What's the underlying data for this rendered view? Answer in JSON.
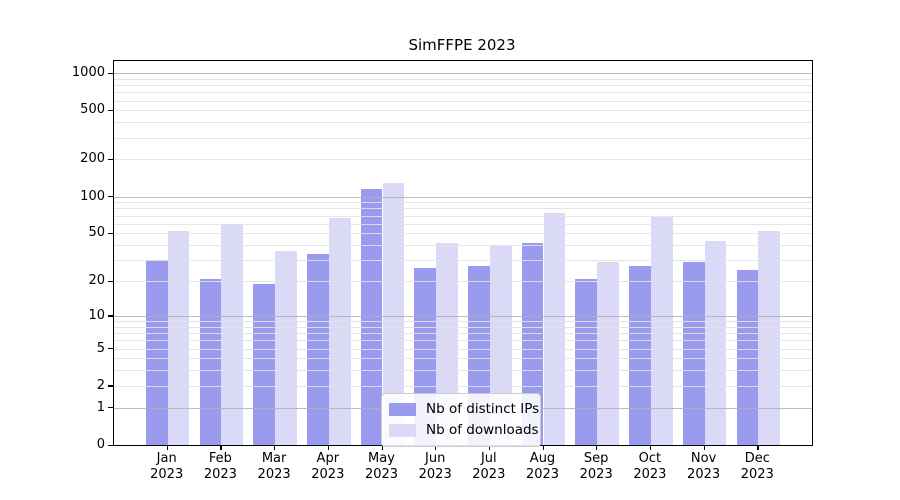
{
  "chart_data": {
    "type": "bar",
    "title": "SimFFPE 2023",
    "year_label": "2023",
    "months": [
      "Jan",
      "Feb",
      "Mar",
      "Apr",
      "May",
      "Jun",
      "Jul",
      "Aug",
      "Sep",
      "Oct",
      "Nov",
      "Dec"
    ],
    "categories": [
      "Jan 2023",
      "Feb 2023",
      "Mar 2023",
      "Apr 2023",
      "May 2023",
      "Jun 2023",
      "Jul 2023",
      "Aug 2023",
      "Sep 2023",
      "Oct 2023",
      "Nov 2023",
      "Dec 2023"
    ],
    "series": [
      {
        "name": "Nb of distinct IPs",
        "color": "#9a9aee",
        "values": [
          30,
          21,
          19,
          34,
          115,
          26,
          27,
          42,
          21,
          27,
          29,
          25
        ]
      },
      {
        "name": "Nb of downloads",
        "color": "#dadaf8",
        "values": [
          52,
          60,
          36,
          67,
          130,
          42,
          39,
          74,
          29,
          68,
          43,
          52
        ]
      }
    ],
    "xlabel": "",
    "ylabel": "",
    "yscale": "log1p",
    "ylim": [
      0,
      1250
    ],
    "yticks": [
      0,
      1,
      2,
      5,
      10,
      20,
      50,
      100,
      200,
      500,
      1000
    ],
    "grid": true,
    "grid_major_at": [
      1,
      10,
      100,
      1000
    ],
    "legend": {
      "position": "bottom-center",
      "entries": [
        "Nb of distinct IPs",
        "Nb of downloads"
      ]
    }
  },
  "colors": {
    "bar_ips": "#9a9aee",
    "bar_downloads": "#dadaf8",
    "axis": "#000000",
    "grid_major": "#b2b2b2",
    "grid_minor": "#e2e2e2",
    "legend_border": "#cccccc",
    "background": "#ffffff"
  }
}
